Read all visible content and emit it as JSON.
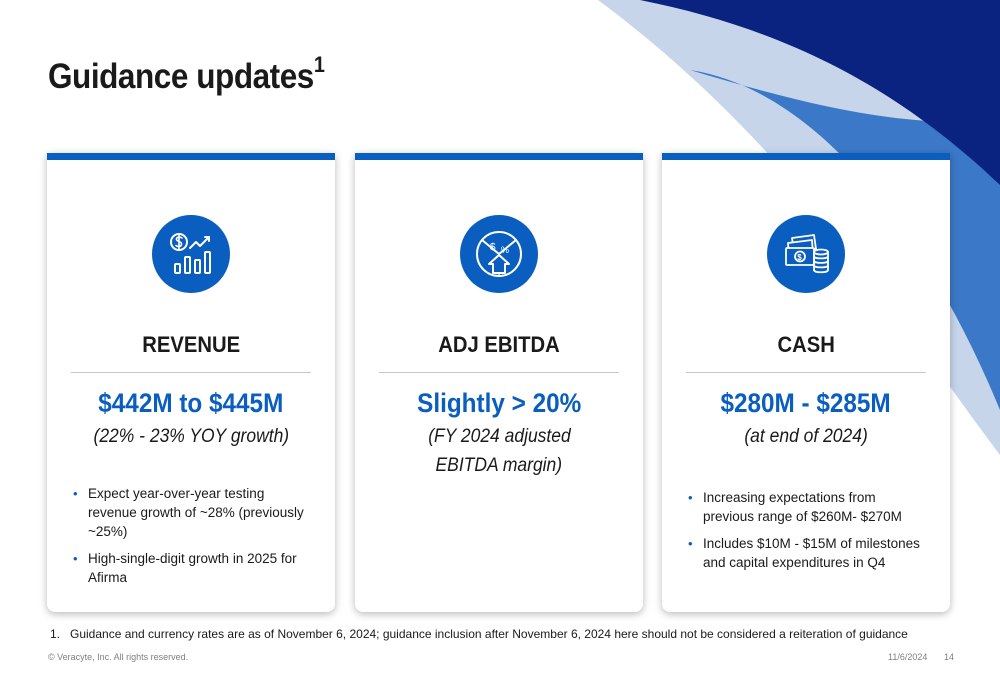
{
  "slide": {
    "title": "Guidance updates",
    "title_footnote_marker": "1"
  },
  "cards": [
    {
      "icon": "revenue-chart-icon",
      "heading": "REVENUE",
      "value": "$442M to $445M",
      "subtext_lines": [
        "(22% - 23% YOY growth)"
      ],
      "bullets": [
        "Expect year-over-year testing revenue growth of ~28% (previously ~25%)",
        "High-single-digit growth in 2025 for Afirma"
      ]
    },
    {
      "icon": "ebitda-percent-icon",
      "heading": "ADJ EBITDA",
      "value": "Slightly > 20%",
      "subtext_lines": [
        "(FY 2024 adjusted",
        "EBITDA margin)"
      ],
      "bullets": []
    },
    {
      "icon": "cash-icon",
      "heading": "CASH",
      "value": "$280M - $285M",
      "subtext_lines": [
        "(at end of 2024)"
      ],
      "bullets": [
        "Increasing expectations from previous range of $260M- $270M",
        "Includes $10M - $15M of milestones and capital expenditures in Q4"
      ]
    }
  ],
  "footnote": {
    "number": "1.",
    "text": "Guidance and currency rates are as of November 6, 2024; guidance inclusion after November 6, 2024 here should not be considered a reiteration of guidance"
  },
  "footer": {
    "copyright": "© Veracyte, Inc.  All rights reserved.",
    "date": "11/6/2024",
    "page": "14"
  },
  "colors": {
    "accent_blue": "#0a5ec0",
    "navy": "#0a2381",
    "mid_blue": "#3b78c7",
    "light_blue": "#c6d5ea"
  }
}
